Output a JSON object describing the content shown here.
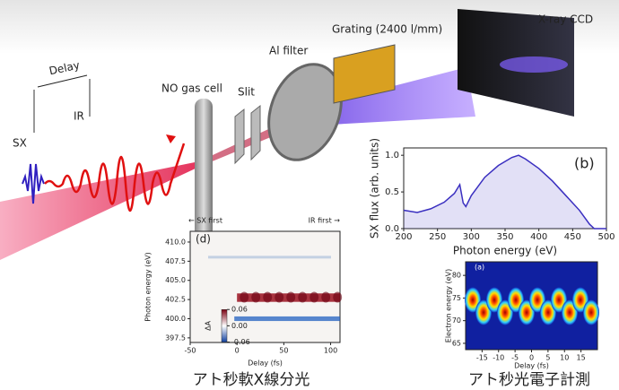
{
  "setup": {
    "sx": "SX",
    "ir": "IR",
    "delay": "Delay",
    "gas_cell": "NO gas cell",
    "slit": "Slit",
    "filter": "Al filter",
    "grating": "Grating (2400 l/mm)",
    "ccd": "X-ray CCD"
  },
  "panel_b": {
    "label": "(b)",
    "xlabel": "Photon energy (eV)",
    "ylabel": "SX flux (arb. units)",
    "color": "#3a2fc0",
    "xlim": [
      200,
      500
    ],
    "ylim": [
      0,
      1.1
    ],
    "xticks": [
      200,
      250,
      300,
      350,
      400,
      450,
      500
    ],
    "yticks": [
      {
        "value": 0,
        "label": "0.0"
      },
      {
        "value": 0.5,
        "label": "0.5"
      },
      {
        "value": 1,
        "label": "1.0"
      }
    ],
    "x": [
      200,
      220,
      240,
      260,
      275,
      283,
      288,
      292,
      300,
      320,
      340,
      360,
      370,
      380,
      400,
      420,
      440,
      460,
      475,
      482,
      500
    ],
    "values": [
      0.25,
      0.22,
      0.27,
      0.36,
      0.48,
      0.6,
      0.35,
      0.3,
      0.45,
      0.7,
      0.86,
      0.97,
      1.0,
      0.95,
      0.82,
      0.65,
      0.45,
      0.25,
      0.06,
      0.0,
      0.0
    ]
  },
  "panel_d": {
    "label": "(d)",
    "top_left": "← SX first",
    "top_right": "IR first →",
    "xlabel": "Delay (fs)",
    "ylabel": "Photon energy (eV)",
    "xlim": [
      -50,
      110
    ],
    "ylim": [
      396.9,
      411.4
    ],
    "xticks": [
      -50,
      0,
      50,
      100
    ],
    "yticks": [
      397.5,
      {
        "value": 400,
        "label": "400.0"
      },
      402.5,
      {
        "value": 405,
        "label": "405.0"
      },
      407.5,
      {
        "value": 410,
        "label": "410.0"
      }
    ],
    "colorbar": {
      "label": "ΔA",
      "ticks": [
        {
          "value": 0.06,
          "label": "0.06"
        },
        {
          "value": 0,
          "label": "0.00"
        },
        {
          "value": -0.06,
          "label": "-0.06"
        }
      ]
    },
    "caption": "アト秒軟X線分光"
  },
  "panel_a": {
    "label": "(a)",
    "xlabel": "Delay (fs)",
    "ylabel": "Electron energy (eV)",
    "xlim": [
      -20,
      20
    ],
    "ylim": [
      63.6,
      83
    ],
    "xticks": [
      -15,
      -10,
      -5,
      0,
      5,
      10,
      15
    ],
    "yticks": [
      65,
      70,
      75,
      80
    ],
    "caption": "アト秒光電子計測"
  }
}
